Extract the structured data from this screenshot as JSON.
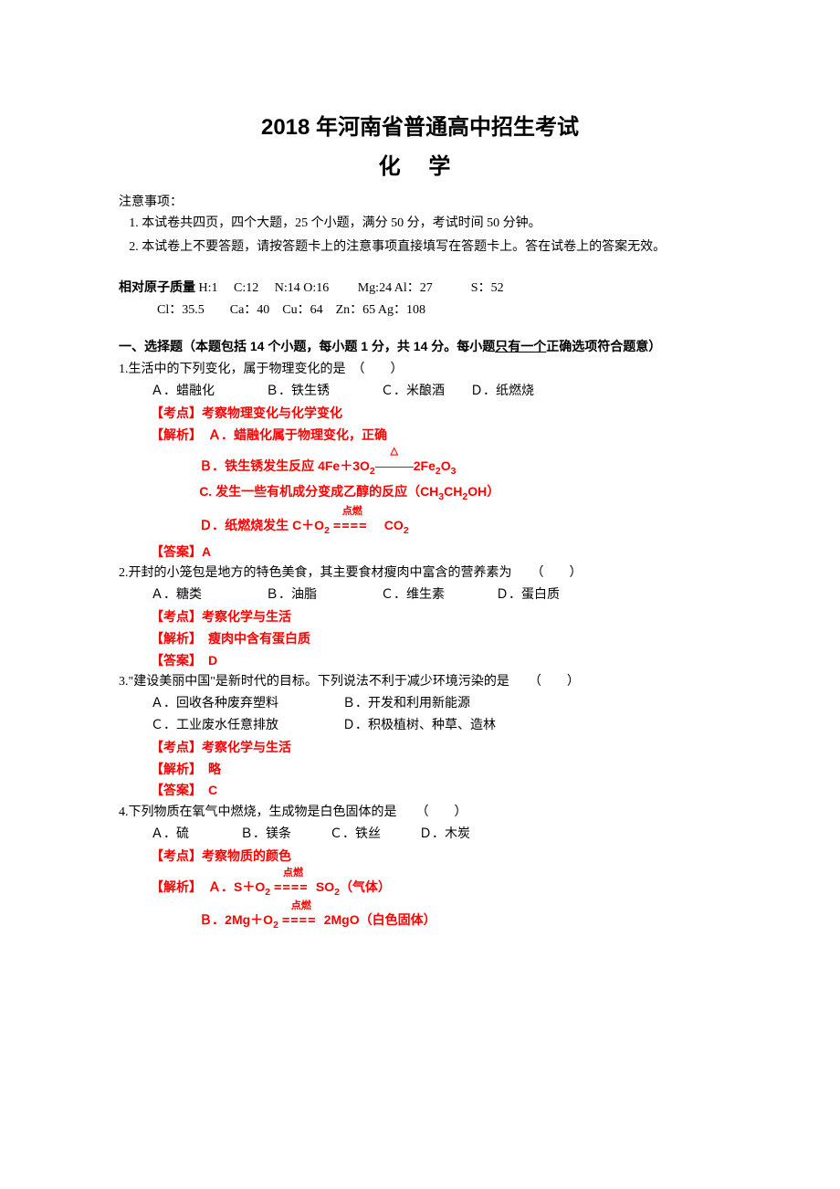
{
  "title": "2018 年河南省普通高中招生考试",
  "subtitle": "化 学",
  "notice_heading": "注意事项：",
  "notices": [
    "本试卷共四页，四个大题，25 个小题，满分 50 分，考试时间 50 分钟。",
    "本试卷上不要答题，请按答题卡上的注意事项直接填写在答题卡上。答在试卷上的答案无效。"
  ],
  "atomic_mass_label": "相对原子质量",
  "atomic_mass_line1": " H:1　 C:12　 N:14 O:16 　　Mg:24 Al：27　　　S：52",
  "atomic_mass_line2": "Cl：35.5　　Ca：40　Cu：64　Zn：65 Ag：108",
  "section1_header_part1": "一、选择题（本题包括 14 个小题，每小题 1 分，共 14 分。每小题",
  "section1_header_underline": "只有一个",
  "section1_header_part2": "正确选项符合题意）",
  "q1": {
    "stem": "1.生活中的下列变化，属于物理变化的是　（　　）",
    "options": "Ａ．蜡融化　　　　Ｂ．铁生锈　　　　Ｃ．米酿酒　　Ｄ．纸燃烧",
    "kaodian": "【考点】考察物理变化与化学变化",
    "jiexi_label": "【解析】",
    "jiexi_a": "　Ａ．蜡融化属于物理变化，正确",
    "jiexi_b_pre": "Ｂ．铁生锈发生反应 4Fe＋3O",
    "jiexi_b_post": "2Fe",
    "jiexi_c": "C. 发生一些有机成分变成乙醇的反应（CH",
    "jiexi_c_post": "OH）",
    "jiexi_d_pre": "Ｄ．纸燃烧发生 C＋O",
    "jiexi_d_post": "　CO",
    "cond_ignite": "点燃",
    "answer": "【答案】A"
  },
  "q2": {
    "stem": "2.开封的小笼包是地方的特色美食，其主要食材瘦肉中富含的营养素为　　（　　）",
    "options": "Ａ．糖类　　　　　Ｂ．油脂　　　　　Ｃ．维生素　　　　Ｄ．蛋白质",
    "kaodian": "【考点】考察化学与生活",
    "jiexi": "【解析】　瘦肉中含有蛋白质",
    "answer": "【答案】　D"
  },
  "q3": {
    "stem": "3.\"建设美丽中国\"是新时代的目标。下列说法不利于减少环境污染的是　　（　　）",
    "options_line1": "Ａ．回收各种废弃塑料　　　　　Ｂ．开发和利用新能源",
    "options_line2": "Ｃ．工业废水任意排放　　　　　Ｄ．积极植树、种草、造林",
    "kaodian": "【考点】考察化学与生活",
    "jiexi": "【解析】　略",
    "answer": "【答案】　C"
  },
  "q4": {
    "stem": "4.下列物质在氧气中燃烧，生成物是白色固体的是　　（　　）",
    "options": "Ａ．硫　　　　Ｂ．镁条　　　Ｃ．铁丝　　　Ｄ．木炭",
    "kaodian": "【考点】考察物质的颜色",
    "jiexi_label": "【解析】",
    "jiexi_a_pre": "　Ａ．S＋O",
    "jiexi_a_post": " SO",
    "jiexi_a_note": "（气体）",
    "jiexi_b_pre": "Ｂ．2Mg＋O",
    "jiexi_b_post": " 2MgO（白色固体）",
    "cond_ignite": "点燃"
  }
}
